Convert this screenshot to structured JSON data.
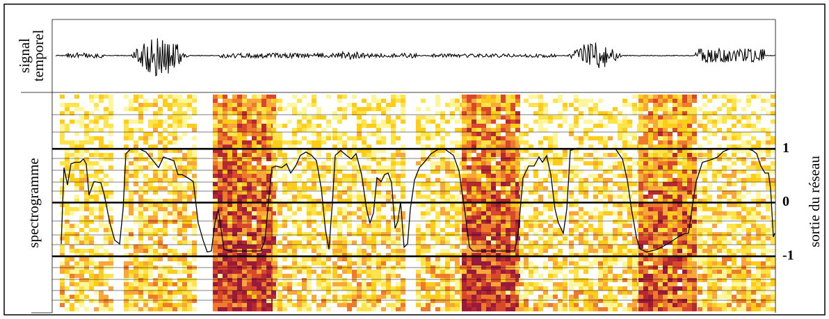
{
  "chart_data": {
    "type": "line",
    "annotations": [
      "signal",
      "temporel",
      "spectrogramme"
    ],
    "ylabel": "sortie du réseau",
    "color": "#000000",
    "ylim": [
      -2.05,
      2.05
    ],
    "yticks": [
      -1,
      0,
      1
    ],
    "xlim": [
      0,
      1040
    ],
    "x": [
      13,
      17,
      22,
      27,
      33,
      40,
      45,
      49,
      53,
      60,
      70,
      75,
      83,
      90,
      97,
      102,
      106,
      113,
      125,
      135,
      145,
      153,
      160,
      168,
      175,
      181,
      187,
      195,
      203,
      210,
      217,
      223,
      229,
      234,
      239,
      243,
      247,
      255,
      270,
      285,
      300,
      306,
      311,
      316,
      322,
      330,
      337,
      343,
      350,
      357,
      365,
      373,
      380,
      387,
      393,
      398,
      403,
      407,
      415,
      423,
      430,
      437,
      445,
      452,
      457,
      462,
      467,
      473,
      478,
      483,
      488,
      493,
      497,
      501,
      506,
      511,
      515,
      521,
      528,
      537,
      545,
      555,
      565,
      577,
      585,
      593,
      600,
      605,
      625,
      645,
      665,
      670,
      677,
      685,
      693,
      700,
      705,
      711,
      717,
      723,
      728,
      735,
      740,
      745,
      755,
      775,
      795,
      810,
      820,
      827,
      833,
      840,
      845,
      855,
      870,
      885,
      900,
      910,
      915,
      921,
      926,
      935,
      943,
      950,
      957,
      965,
      975,
      985,
      1000,
      1007,
      1013,
      1019,
      1025,
      1030,
      1033,
      1037,
      1039
    ],
    "values": [
      -0.77,
      0.65,
      0.33,
      0.72,
      0.75,
      0.75,
      0.81,
      0.72,
      0.14,
      0.39,
      0.37,
      0.14,
      -0.38,
      -0.7,
      -0.77,
      -0.12,
      0.91,
      1.0,
      1.0,
      0.94,
      0.78,
      0.65,
      0.85,
      0.81,
      0.78,
      0.52,
      0.52,
      0.46,
      0.39,
      -0.38,
      -0.7,
      -0.92,
      -0.9,
      -0.38,
      -0.12,
      -0.51,
      -0.87,
      -0.9,
      -0.9,
      -0.9,
      -0.9,
      -0.7,
      0.01,
      0.65,
      0.68,
      0.65,
      0.72,
      0.55,
      0.68,
      0.88,
      0.94,
      0.88,
      0.78,
      0.26,
      -0.51,
      -0.87,
      0.01,
      0.88,
      0.97,
      0.88,
      0.81,
      0.91,
      0.52,
      -0.12,
      -0.38,
      -0.19,
      0.46,
      0.39,
      0.52,
      0.55,
      0.37,
      -0.48,
      -0.35,
      0.01,
      -0.83,
      -0.77,
      -0.12,
      0.42,
      0.65,
      0.78,
      0.91,
      0.99,
      0.99,
      0.88,
      0.59,
      -0.12,
      -0.83,
      -0.9,
      -0.9,
      -0.9,
      -0.9,
      -0.57,
      0.46,
      0.68,
      0.68,
      0.85,
      0.75,
      0.87,
      0.52,
      -0.12,
      -0.38,
      -0.57,
      -0.12,
      0.97,
      1.01,
      1.0,
      1.0,
      1.0,
      0.81,
      0.42,
      -0.12,
      -0.64,
      -0.86,
      -0.92,
      -0.87,
      -0.77,
      -0.64,
      -0.57,
      -0.57,
      -0.02,
      0.39,
      0.75,
      0.78,
      0.81,
      0.85,
      0.95,
      1.0,
      1.01,
      1.0,
      0.97,
      0.91,
      0.68,
      0.55,
      0.55,
      0.26,
      -0.64,
      -0.57
    ]
  }
}
